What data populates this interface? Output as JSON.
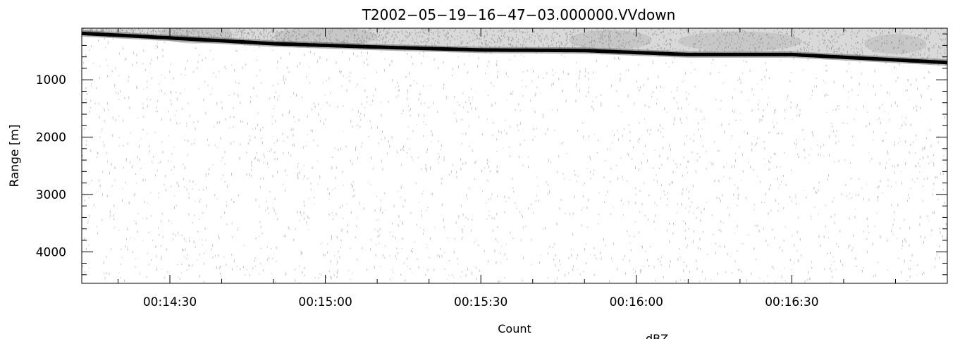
{
  "chart_data": {
    "type": "heatmap",
    "title": "T2002−05−19−16−47−03.000000.VVdown",
    "xlabel": "Count",
    "ylabel": "Range [m]",
    "colorbar_label": "dBZ",
    "x_range_seconds": [
      853,
      1020
    ],
    "x_ticks": [
      {
        "t": 870,
        "label": "00:14:30"
      },
      {
        "t": 900,
        "label": "00:15:00"
      },
      {
        "t": 930,
        "label": "00:15:30"
      },
      {
        "t": 960,
        "label": "00:16:00"
      },
      {
        "t": 990,
        "label": "00:16:30"
      }
    ],
    "x_minor_step_seconds": 10,
    "y_range": [
      4550,
      100
    ],
    "y_ticks": [
      1000,
      2000,
      3000,
      4000
    ],
    "y_minor_step": 200,
    "surface_echo": {
      "x_seconds": [
        853,
        870,
        890,
        910,
        930,
        950,
        970,
        990,
        1005,
        1020
      ],
      "range_m": [
        190,
        270,
        370,
        430,
        480,
        490,
        560,
        560,
        630,
        700
      ]
    },
    "colormap": "grayscale",
    "grid": false
  }
}
